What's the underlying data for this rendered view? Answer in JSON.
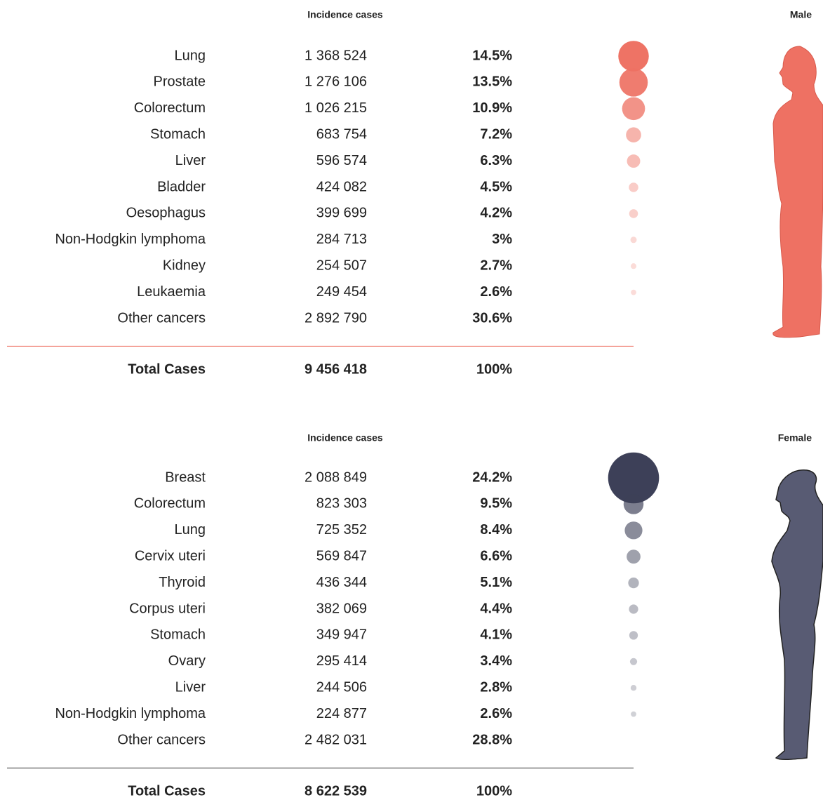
{
  "sections": [
    {
      "column_header": "Incidence cases",
      "gender": "Male",
      "color": "#ee7163",
      "rule_color": "#ee7163",
      "rows": [
        {
          "site": "Lung",
          "cases": "1 368 524",
          "percent": 14.5,
          "percent_label": "14.5%"
        },
        {
          "site": "Prostate",
          "cases": "1 276 106",
          "percent": 13.5,
          "percent_label": "13.5%"
        },
        {
          "site": "Colorectum",
          "cases": "1 026 215",
          "percent": 10.9,
          "percent_label": "10.9%"
        },
        {
          "site": "Stomach",
          "cases": "683 754",
          "percent": 7.2,
          "percent_label": "7.2%"
        },
        {
          "site": "Liver",
          "cases": "596 574",
          "percent": 6.3,
          "percent_label": "6.3%"
        },
        {
          "site": "Bladder",
          "cases": "424 082",
          "percent": 4.5,
          "percent_label": "4.5%"
        },
        {
          "site": "Oesophagus",
          "cases": "399 699",
          "percent": 4.2,
          "percent_label": "4.2%"
        },
        {
          "site": "Non-Hodgkin lymphoma",
          "cases": "284 713",
          "percent": 3,
          "percent_label": "3%"
        },
        {
          "site": "Kidney",
          "cases": "254 507",
          "percent": 2.7,
          "percent_label": "2.7%"
        },
        {
          "site": "Leukaemia",
          "cases": "249 454",
          "percent": 2.6,
          "percent_label": "2.6%"
        },
        {
          "site": "Other cancers",
          "cases": "2 892 790",
          "percent": 30.6,
          "percent_label": "30.6%"
        }
      ],
      "total": {
        "label": "Total Cases",
        "cases": "9 456 418",
        "percent_label": "100%"
      }
    },
    {
      "column_header": "Incidence cases",
      "gender": "Female",
      "color": "#3d4058",
      "rule_color": "#333333",
      "rows": [
        {
          "site": "Breast",
          "cases": "2 088 849",
          "percent": 24.2,
          "percent_label": "24.2%"
        },
        {
          "site": "Colorectum",
          "cases": "823 303",
          "percent": 9.5,
          "percent_label": "9.5%"
        },
        {
          "site": "Lung",
          "cases": "725 352",
          "percent": 8.4,
          "percent_label": "8.4%"
        },
        {
          "site": "Cervix uteri",
          "cases": "569 847",
          "percent": 6.6,
          "percent_label": "6.6%"
        },
        {
          "site": "Thyroid",
          "cases": "436 344",
          "percent": 5.1,
          "percent_label": "5.1%"
        },
        {
          "site": "Corpus uteri",
          "cases": "382 069",
          "percent": 4.4,
          "percent_label": "4.4%"
        },
        {
          "site": "Stomach",
          "cases": "349 947",
          "percent": 4.1,
          "percent_label": "4.1%"
        },
        {
          "site": "Ovary",
          "cases": "295 414",
          "percent": 3.4,
          "percent_label": "3.4%"
        },
        {
          "site": "Liver",
          "cases": "244 506",
          "percent": 2.8,
          "percent_label": "2.8%"
        },
        {
          "site": "Non-Hodgkin lymphoma",
          "cases": "224 877",
          "percent": 2.6,
          "percent_label": "2.6%"
        },
        {
          "site": "Other cancers",
          "cases": "2 482 031",
          "percent": 28.8,
          "percent_label": "28.8%"
        }
      ],
      "total": {
        "label": "Total Cases",
        "cases": "8 622 539",
        "percent_label": "100%"
      }
    }
  ]
}
